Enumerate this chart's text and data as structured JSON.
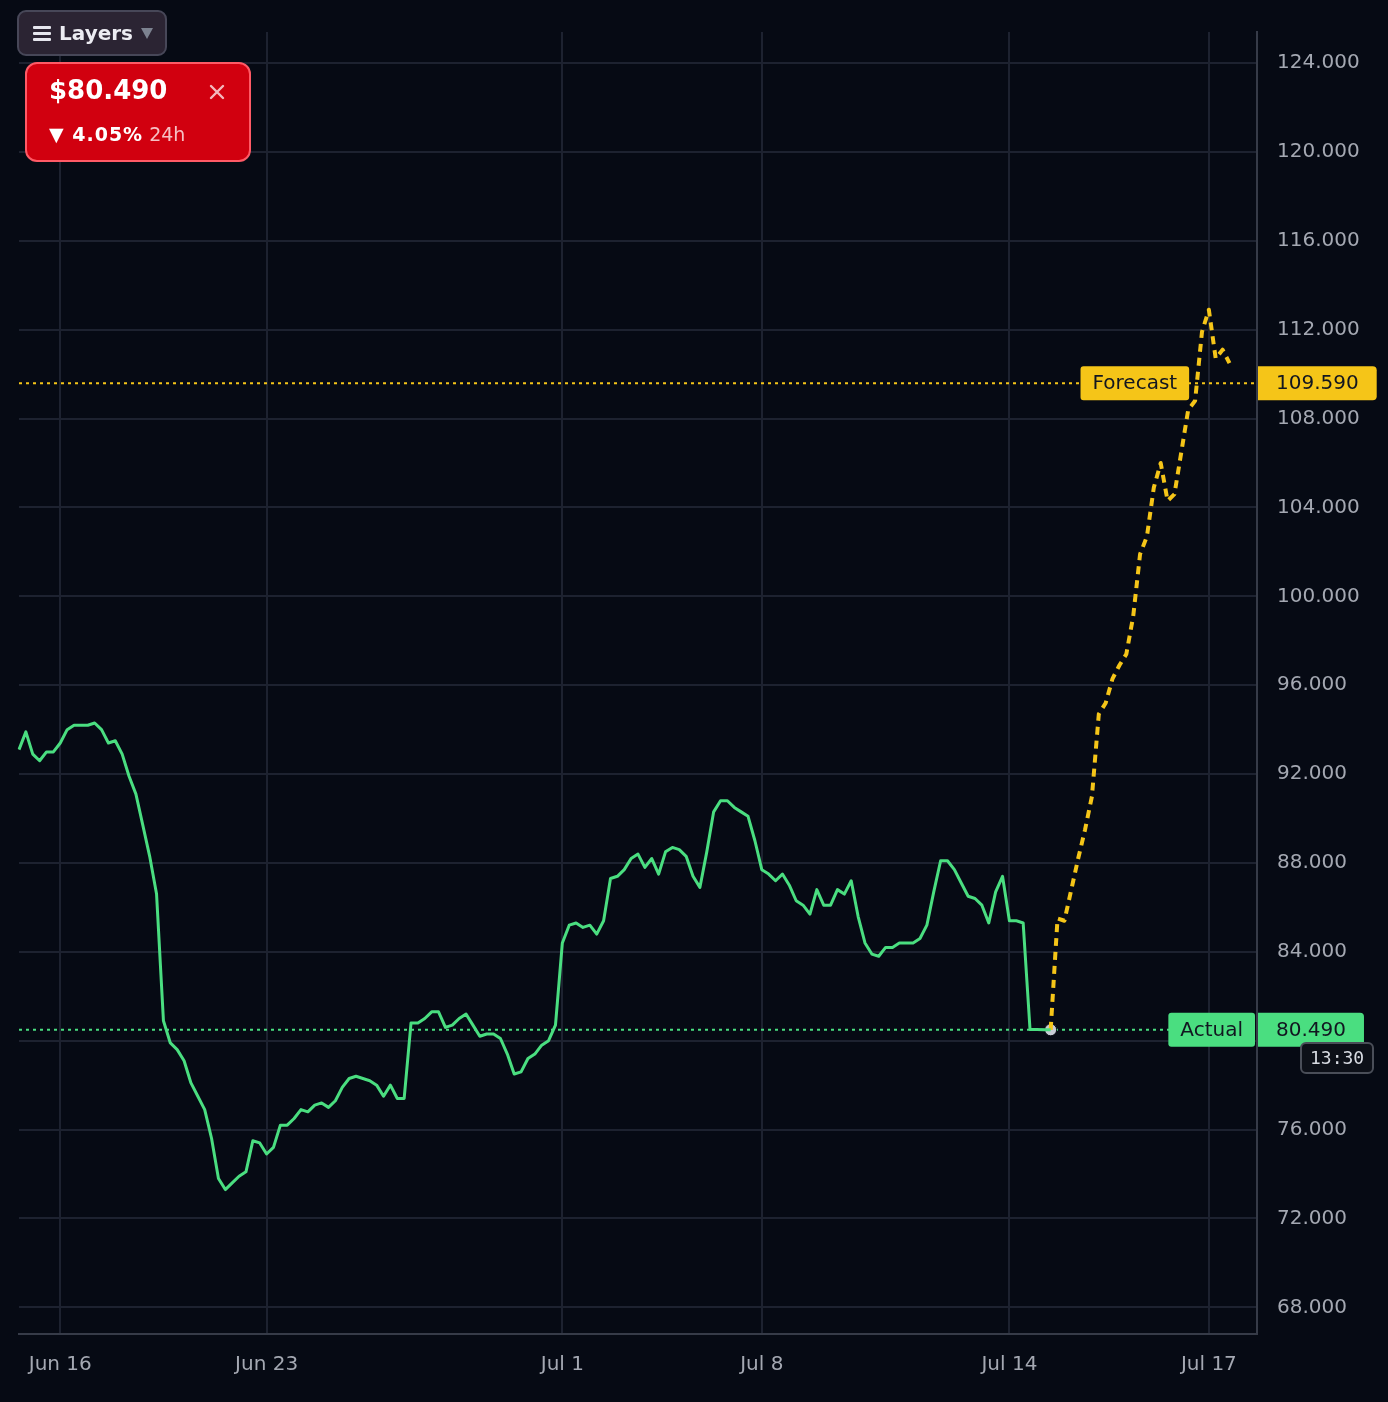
{
  "chart_data": {
    "type": "line",
    "categories": [
      null,
      null,
      null,
      null,
      null,
      null,
      "Jun 16",
      null,
      null,
      null,
      null,
      null,
      null,
      null,
      null,
      null,
      null,
      null,
      null,
      null,
      null,
      null,
      null,
      null,
      null,
      null,
      null,
      null,
      null,
      null,
      null,
      null,
      null,
      null,
      null,
      null,
      "Jun 23",
      null,
      null,
      null,
      null,
      null,
      null,
      null,
      null,
      null,
      null,
      null,
      null,
      null,
      null,
      null,
      null,
      null,
      null,
      null,
      null,
      null,
      null,
      null,
      null,
      null,
      null,
      null,
      null,
      null,
      null,
      null,
      null,
      null,
      null,
      null,
      null,
      null,
      null,
      null,
      null,
      null,
      null,
      "Jul 1",
      null,
      null,
      null,
      null,
      null,
      null,
      null,
      null,
      null,
      null,
      null,
      null,
      null,
      null,
      null,
      null,
      null,
      null,
      null,
      null,
      null,
      null,
      null,
      null,
      null,
      null,
      null,
      null,
      "Jul 8",
      null,
      null,
      null,
      null,
      null,
      null,
      null,
      null,
      null,
      null,
      null,
      null,
      null,
      null,
      null,
      null,
      null,
      null,
      null,
      null,
      null,
      null,
      null,
      null,
      null,
      null,
      null,
      null,
      null,
      null,
      null,
      null,
      null,
      null,
      null,
      "Jul 14",
      null,
      null,
      null,
      null,
      null,
      null,
      null,
      null,
      null,
      null,
      null,
      null,
      null,
      null,
      null,
      null,
      null,
      null,
      null,
      null,
      null,
      null,
      null,
      null,
      null,
      null,
      null,
      null,
      "Jul 17",
      null,
      null,
      null,
      null,
      null,
      null,
      null
    ],
    "series": [
      {
        "color": "#4ade80",
        "line_style": "solid",
        "values": [
          93.1,
          93.9,
          92.9,
          92.6,
          93.0,
          93.0,
          93.4,
          94.0,
          94.2,
          94.2,
          94.2,
          94.3,
          94.0,
          93.4,
          93.5,
          92.9,
          91.9,
          91.1,
          89.7,
          88.3,
          86.6,
          80.9,
          79.9,
          79.6,
          79.1,
          78.1,
          77.5,
          76.9,
          75.6,
          73.8,
          73.3,
          73.6,
          73.9,
          74.1,
          75.5,
          75.4,
          74.9,
          75.2,
          76.2,
          76.2,
          76.5,
          76.9,
          76.8,
          77.1,
          77.2,
          77.0,
          77.3,
          77.9,
          78.3,
          78.4,
          78.3,
          78.2,
          78.0,
          77.5,
          78.0,
          77.4,
          77.4,
          80.8,
          80.8,
          81.0,
          81.3,
          81.3,
          80.6,
          80.7,
          81.0,
          81.2,
          80.7,
          80.2,
          80.3,
          80.3,
          80.1,
          79.4,
          78.5,
          78.6,
          79.2,
          79.4,
          79.8,
          80.0,
          80.7,
          84.4,
          85.2,
          85.3,
          85.1,
          85.2,
          84.8,
          85.4,
          87.3,
          87.4,
          87.7,
          88.2,
          88.4,
          87.8,
          88.2,
          87.5,
          88.5,
          88.7,
          88.6,
          88.3,
          87.4,
          86.9,
          88.5,
          90.3,
          90.8,
          90.8,
          90.5,
          90.3,
          90.1,
          89.0,
          87.7,
          87.5,
          87.2,
          87.5,
          87.0,
          86.3,
          86.1,
          85.7,
          86.8,
          86.1,
          86.1,
          86.8,
          86.6,
          87.2,
          85.6,
          84.4,
          83.9,
          83.8,
          84.2,
          84.2,
          84.4,
          84.4,
          84.4,
          84.6,
          85.2,
          86.7,
          88.1,
          88.1,
          87.7,
          87.1,
          86.5,
          86.4,
          86.1,
          85.3,
          86.7,
          87.4,
          85.4,
          85.4,
          85.3,
          80.5,
          80.5,
          80.49,
          80.49,
          null,
          null,
          null,
          null,
          null,
          null,
          null,
          null,
          null,
          null,
          null,
          null,
          null,
          null,
          null,
          null,
          null,
          null,
          null,
          null,
          null,
          null,
          null,
          null,
          null,
          null,
          null,
          null,
          null,
          null
        ]
      },
      {
        "color": "#f5c518",
        "line_style": "dashed",
        "values": [
          null,
          null,
          null,
          null,
          null,
          null,
          null,
          null,
          null,
          null,
          null,
          null,
          null,
          null,
          null,
          null,
          null,
          null,
          null,
          null,
          null,
          null,
          null,
          null,
          null,
          null,
          null,
          null,
          null,
          null,
          null,
          null,
          null,
          null,
          null,
          null,
          null,
          null,
          null,
          null,
          null,
          null,
          null,
          null,
          null,
          null,
          null,
          null,
          null,
          null,
          null,
          null,
          null,
          null,
          null,
          null,
          null,
          null,
          null,
          null,
          null,
          null,
          null,
          null,
          null,
          null,
          null,
          null,
          null,
          null,
          null,
          null,
          null,
          null,
          null,
          null,
          null,
          null,
          null,
          null,
          null,
          null,
          null,
          null,
          null,
          null,
          null,
          null,
          null,
          null,
          null,
          null,
          null,
          null,
          null,
          null,
          null,
          null,
          null,
          null,
          null,
          null,
          null,
          null,
          null,
          null,
          null,
          null,
          null,
          null,
          null,
          null,
          null,
          null,
          null,
          null,
          null,
          null,
          null,
          null,
          null,
          null,
          null,
          null,
          null,
          null,
          null,
          null,
          null,
          null,
          null,
          null,
          null,
          null,
          null,
          null,
          null,
          null,
          null,
          null,
          null,
          null,
          null,
          null,
          null,
          null,
          null,
          null,
          null,
          null,
          80.49,
          85.5,
          85.4,
          86.8,
          88.2,
          89.5,
          91.0,
          94.7,
          95.2,
          96.3,
          96.9,
          97.4,
          99.1,
          101.9,
          102.7,
          104.9,
          106.0,
          104.3,
          104.6,
          106.5,
          108.4,
          108.8,
          111.9,
          112.9,
          110.7,
          111.1,
          110.5,
          null,
          null,
          null,
          null
        ]
      },
      {
        "type": "scatter",
        "color": "#c8ccd6",
        "marker": "circle",
        "values": [
          null,
          null,
          null,
          null,
          null,
          null,
          null,
          null,
          null,
          null,
          null,
          null,
          null,
          null,
          null,
          null,
          null,
          null,
          null,
          null,
          null,
          null,
          null,
          null,
          null,
          null,
          null,
          null,
          null,
          null,
          null,
          null,
          null,
          null,
          null,
          null,
          null,
          null,
          null,
          null,
          null,
          null,
          null,
          null,
          null,
          null,
          null,
          null,
          null,
          null,
          null,
          null,
          null,
          null,
          null,
          null,
          null,
          null,
          null,
          null,
          null,
          null,
          null,
          null,
          null,
          null,
          null,
          null,
          null,
          null,
          null,
          null,
          null,
          null,
          null,
          null,
          null,
          null,
          null,
          null,
          null,
          null,
          null,
          null,
          null,
          null,
          null,
          null,
          null,
          null,
          null,
          null,
          null,
          null,
          null,
          null,
          null,
          null,
          null,
          null,
          null,
          null,
          null,
          null,
          null,
          null,
          null,
          null,
          null,
          null,
          null,
          null,
          null,
          null,
          null,
          null,
          null,
          null,
          null,
          null,
          null,
          null,
          null,
          null,
          null,
          null,
          null,
          null,
          null,
          null,
          null,
          null,
          null,
          null,
          null,
          null,
          null,
          null,
          null,
          null,
          null,
          null,
          null,
          null,
          null,
          null,
          null,
          null,
          null,
          null,
          80.49,
          null,
          null,
          null,
          null,
          null,
          null,
          null,
          null,
          null,
          null,
          null,
          null,
          null,
          null,
          null,
          null,
          null,
          null,
          null,
          null,
          null,
          null,
          null,
          null,
          null,
          null,
          null,
          null,
          null,
          null
        ]
      }
    ],
    "ylim": [
      66.8,
      125.4
    ],
    "yticks": [
      {
        "value": 68,
        "label": "68.000"
      },
      {
        "value": 72,
        "label": "72.000"
      },
      {
        "value": 76,
        "label": "76.000"
      },
      {
        "value": 80,
        "label": null
      },
      {
        "value": 84,
        "label": "84.000"
      },
      {
        "value": 88,
        "label": "88.000"
      },
      {
        "value": 92,
        "label": "92.000"
      },
      {
        "value": 96,
        "label": "96.000"
      },
      {
        "value": 100,
        "label": "100.000"
      },
      {
        "value": 104,
        "label": "104.000"
      },
      {
        "value": 108,
        "label": "108.000"
      },
      {
        "value": 112,
        "label": "112.000"
      },
      {
        "value": 116,
        "label": "116.000"
      },
      {
        "value": 120,
        "label": "120.000"
      },
      {
        "value": 124,
        "label": "124.000"
      }
    ],
    "grid": true,
    "ref_lines": [
      {
        "axis": "y",
        "value": 80.49,
        "label": "Actual",
        "color": "#4ade80",
        "line_style": "dotted"
      },
      {
        "axis": "y",
        "value": 109.59,
        "label": "Forecast",
        "color": "#f5c518",
        "line_style": "dotted"
      }
    ],
    "annotations": [
      "$80.490",
      "▼ 4.05%",
      "24h",
      "Layers",
      "13:30",
      "80.490",
      "109.590"
    ]
  }
}
